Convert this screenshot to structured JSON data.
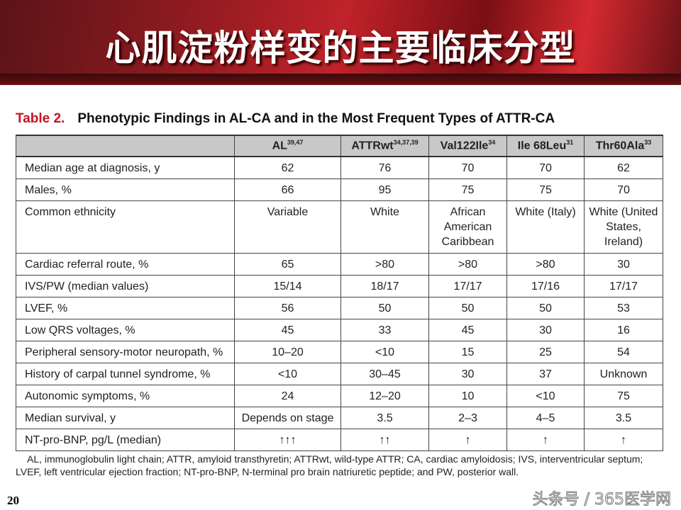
{
  "slide": {
    "title": "心肌淀粉样变的主要临床分型",
    "page_number": "20",
    "watermark": "头条号 / 365医学网"
  },
  "table": {
    "label": "Table 2.",
    "caption": "Phenotypic Findings in AL-CA and in the Most Frequent Types of ATTR-CA",
    "columns": [
      {
        "name": "AL",
        "refs": "39,47"
      },
      {
        "name": "ATTRwt",
        "refs": "34,37,39"
      },
      {
        "name": "Val122Ile",
        "refs": "34"
      },
      {
        "name": "Ile 68Leu",
        "refs": "31"
      },
      {
        "name": "Thr60Ala",
        "refs": "33"
      }
    ],
    "rows": [
      {
        "label": "Median age at diagnosis, y",
        "values": [
          "62",
          "76",
          "70",
          "70",
          "62"
        ]
      },
      {
        "label": "Males, %",
        "values": [
          "66",
          "95",
          "75",
          "75",
          "70"
        ]
      },
      {
        "label": "Common ethnicity",
        "values": [
          "Variable",
          "White",
          "African American Caribbean",
          "White (Italy)",
          "White (United States, Ireland)"
        ]
      },
      {
        "label": "Cardiac referral route, %",
        "values": [
          "65",
          ">80",
          ">80",
          ">80",
          "30"
        ]
      },
      {
        "label": "IVS/PW (median values)",
        "values": [
          "15/14",
          "18/17",
          "17/17",
          "17/16",
          "17/17"
        ]
      },
      {
        "label": "LVEF, %",
        "values": [
          "56",
          "50",
          "50",
          "50",
          "53"
        ]
      },
      {
        "label": "Low QRS voltages, %",
        "values": [
          "45",
          "33",
          "45",
          "30",
          "16"
        ]
      },
      {
        "label": "Peripheral sensory-motor neuropath, %",
        "values": [
          "10–20",
          "<10",
          "15",
          "25",
          "54"
        ]
      },
      {
        "label": "History of carpal tunnel syndrome, %",
        "values": [
          "<10",
          "30–45",
          "30",
          "37",
          "Unknown"
        ]
      },
      {
        "label": "Autonomic symptoms, %",
        "values": [
          "24",
          "12–20",
          "10",
          "<10",
          "75"
        ]
      },
      {
        "label": "Median survival, y",
        "values": [
          "Depends on stage",
          "3.5",
          "2–3",
          "4–5",
          "3.5"
        ]
      },
      {
        "label": "NT-pro-BNP, pg/L (median)",
        "values": [
          "↑↑↑",
          "↑↑",
          "↑",
          "↑",
          "↑"
        ]
      }
    ],
    "footnote_line1": "AL, immunoglobulin light chain; ATTR, amyloid transthyretin; ATTRwt, wild-type ATTR; CA, cardiac amyloidosis; IVS, interventricular septum;",
    "footnote_line2": "LVEF, left ventricular ejection fraction; NT-pro-BNP, N-terminal pro brain natriuretic peptide; and PW, posterior wall."
  },
  "colors": {
    "banner": "#b81e25",
    "table_label": "#c4141f",
    "header_fill": "#c8c8c8"
  }
}
